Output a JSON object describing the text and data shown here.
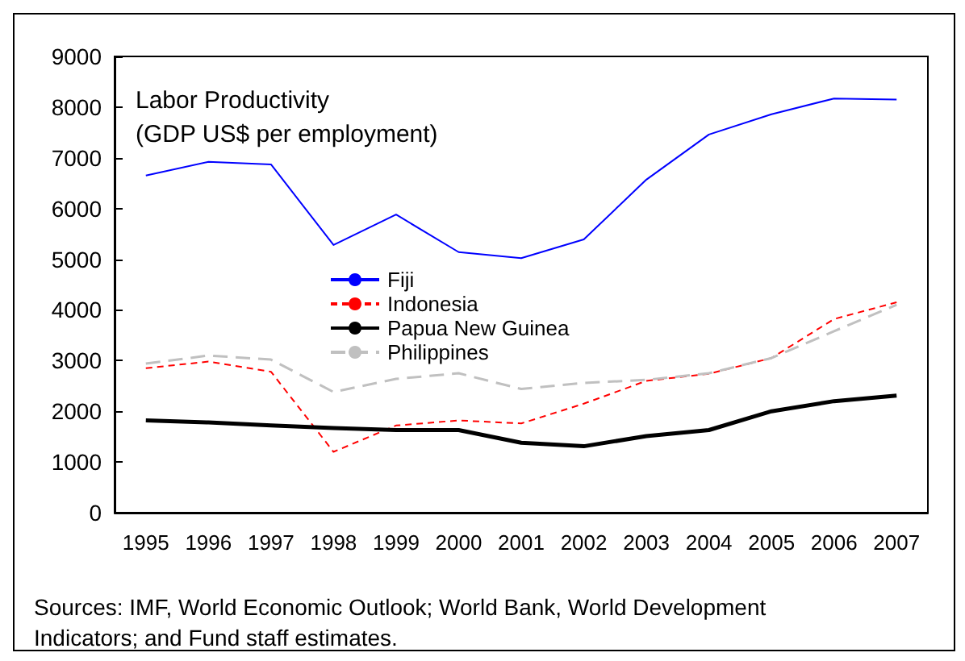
{
  "chart_data": {
    "type": "line",
    "title": "Labor Productivity\n(GDP US$ per employment)",
    "categories": [
      "1995",
      "1996",
      "1997",
      "1998",
      "1999",
      "2000",
      "2001",
      "2002",
      "2003",
      "2004",
      "2005",
      "2006",
      "2007"
    ],
    "series": [
      {
        "name": "Fiji",
        "color": "#0000ff",
        "line_style": "solid",
        "values": [
          6650,
          6920,
          6870,
          5280,
          5880,
          5140,
          5020,
          5390,
          6570,
          7460,
          7860,
          8170,
          8150
        ]
      },
      {
        "name": "Indonesia",
        "color": "#ff0000",
        "line_style": "dashed",
        "values": [
          2850,
          2980,
          2780,
          1200,
          1720,
          1820,
          1760,
          2150,
          2600,
          2740,
          3050,
          3820,
          4150
        ]
      },
      {
        "name": "Papua New Guinea",
        "color": "#000000",
        "line_style": "solid",
        "values": [
          1820,
          1780,
          1720,
          1670,
          1630,
          1630,
          1380,
          1310,
          1510,
          1630,
          2000,
          2200,
          2310
        ]
      },
      {
        "name": "Philippines",
        "color": "#c0c0c0",
        "line_style": "dashed",
        "values": [
          2940,
          3100,
          3020,
          2380,
          2640,
          2750,
          2440,
          2560,
          2620,
          2750,
          3050,
          3580,
          4100
        ]
      }
    ],
    "ylim": [
      0,
      9000
    ],
    "yticks": [
      0,
      1000,
      2000,
      3000,
      4000,
      5000,
      6000,
      7000,
      8000,
      9000
    ],
    "grid": false,
    "legend": "center",
    "marker": "none",
    "annotations": [
      "Sources: IMF, World Economic Outlook; World Bank, World Development\nIndicators; and Fund staff estimates."
    ]
  }
}
